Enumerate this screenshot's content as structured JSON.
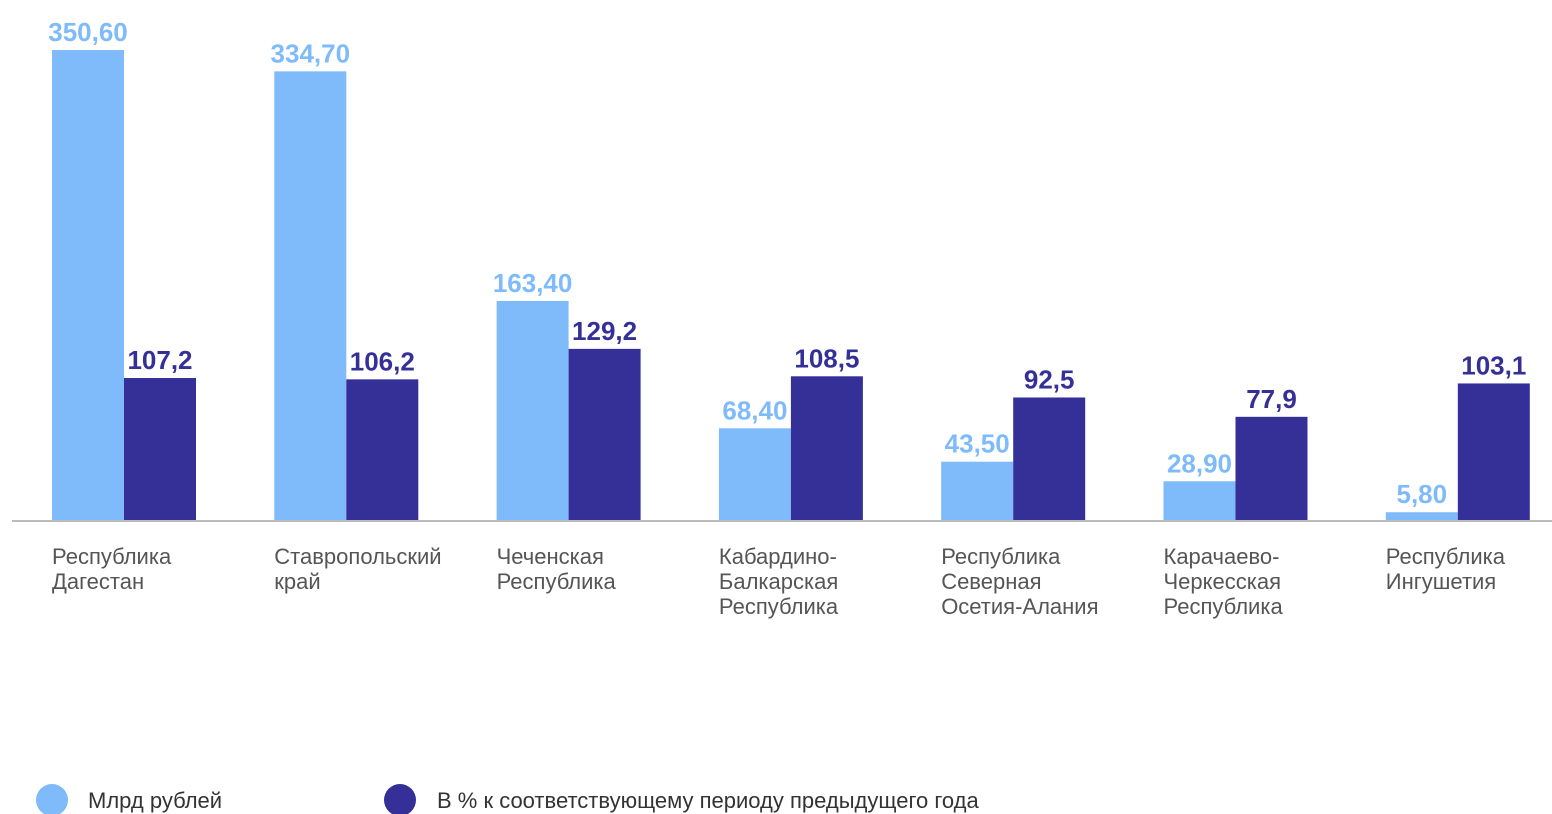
{
  "chart_data": {
    "type": "bar",
    "categories": [
      "Республика\nДагестан",
      "Ставропольский\nкрай",
      "Чеченская\nРеспублика",
      "Кабардино-\nБалкарская\nРеспублика",
      "Республика\nСеверная\nОсетия-Алания",
      "Карачаево-\nЧеркесская\nРеспублика",
      "Республика\nИнгушетия"
    ],
    "series": [
      {
        "name": "Млрд рублей",
        "color": "#7fbbfa",
        "values": [
          350.6,
          334.7,
          163.4,
          68.4,
          43.5,
          28.9,
          5.8
        ],
        "value_labels": [
          "350,60",
          "334,70",
          "163,40",
          "68,40",
          "43,50",
          "28,90",
          "5,80"
        ]
      },
      {
        "name": "В % к соответствующему периоду предыдущего года",
        "color": "#353097",
        "axis": "y2",
        "values": [
          107.2,
          106.2,
          129.2,
          108.5,
          92.5,
          77.9,
          103.1
        ],
        "value_labels": [
          "107,2",
          "106,2",
          "129,2",
          "108,5",
          "92,5",
          "77,9",
          "103,1"
        ]
      }
    ],
    "ylim": [
      0,
      373
    ],
    "y2lim": [
      0,
      377.5
    ],
    "legend": "bottom"
  }
}
